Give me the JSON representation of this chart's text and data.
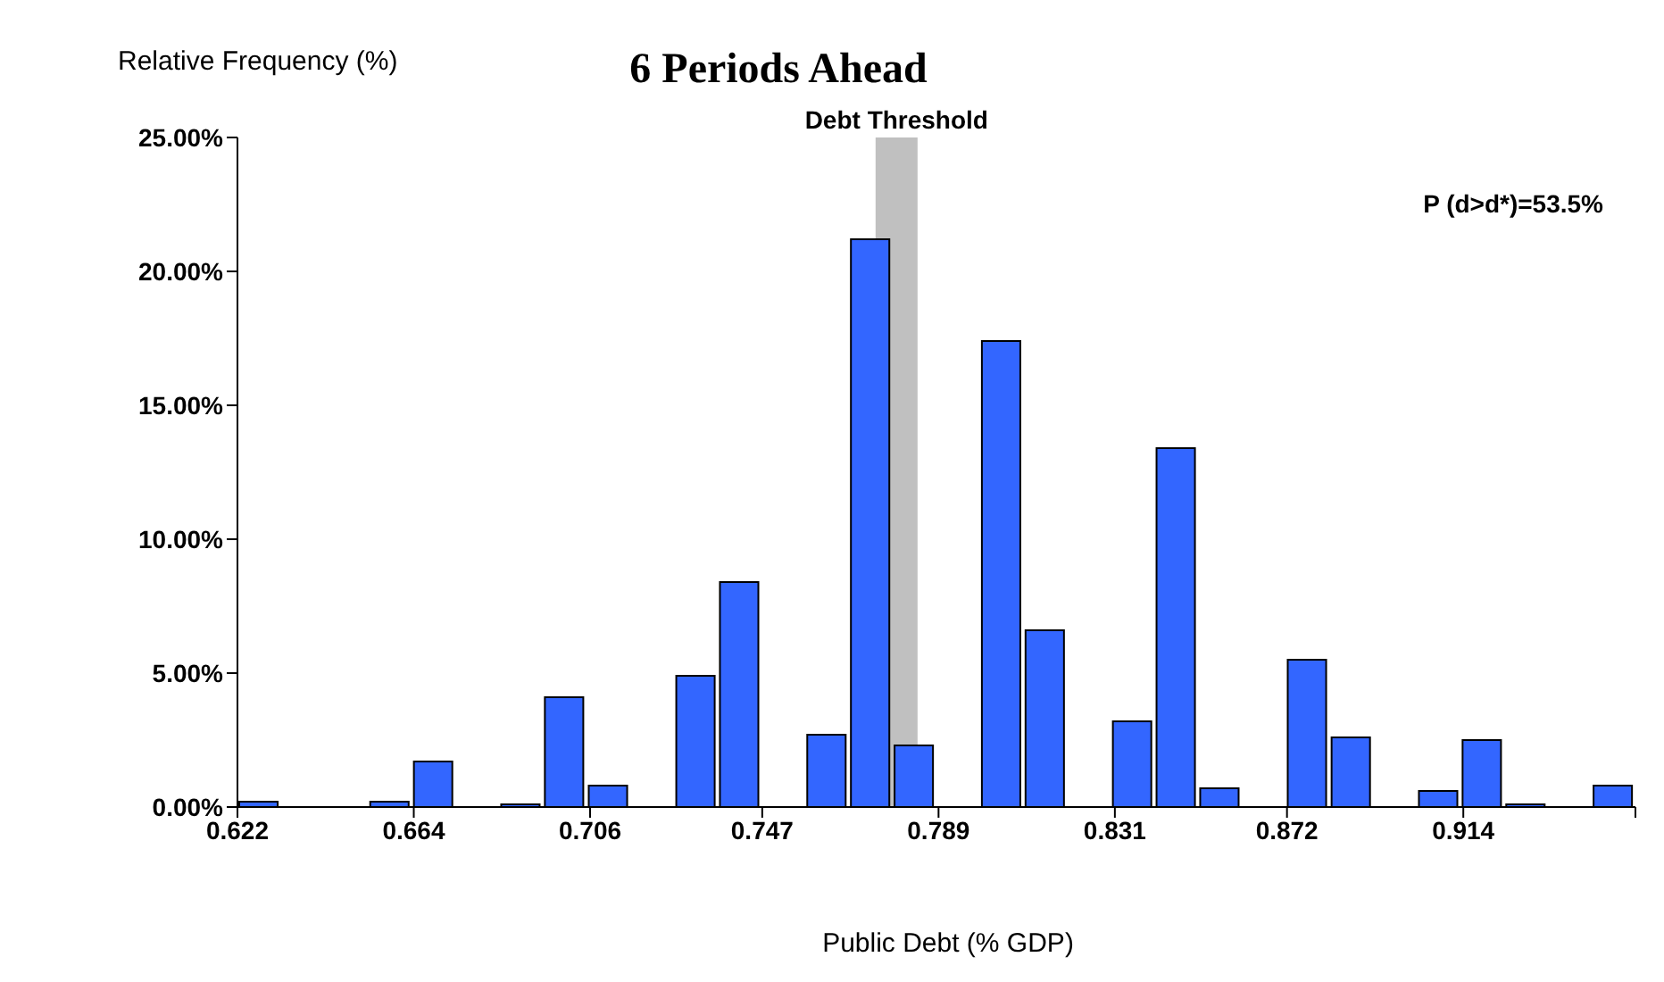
{
  "chart_data": {
    "type": "histogram",
    "title": "6 Periods Ahead",
    "xlabel": "Public Debt (% GDP)",
    "ylabel": "Relative Frequency (%)",
    "bins": [
      0.622,
      0.6324,
      0.6428,
      0.6532,
      0.6636,
      0.674,
      0.6844,
      0.6948,
      0.7052,
      0.7157,
      0.7261,
      0.7365,
      0.7469,
      0.7573,
      0.7677,
      0.7781,
      0.7885,
      0.7989,
      0.8093,
      0.8197,
      0.8301,
      0.8405,
      0.8509,
      0.8613,
      0.8717,
      0.8822,
      0.8926,
      0.903,
      0.9134,
      0.9238,
      0.9342,
      0.9446,
      0.955
    ],
    "values": [
      0.2,
      0,
      0,
      0.2,
      1.7,
      0,
      0.1,
      4.1,
      0.8,
      0,
      4.9,
      8.4,
      0,
      2.7,
      21.2,
      2.3,
      0,
      17.4,
      6.6,
      0,
      3.2,
      13.4,
      0.7,
      0,
      5.5,
      2.6,
      0,
      0.6,
      2.5,
      0.1,
      0,
      0.8
    ],
    "color": "#3366ff",
    "xlim": [
      0.622,
      0.955
    ],
    "xticks": [
      0.622,
      0.664,
      0.706,
      0.747,
      0.789,
      0.831,
      0.872,
      0.914,
      {
        "value": 0.955,
        "label": null
      }
    ],
    "ylim": [
      0,
      25
    ],
    "yticks": [
      {
        "value": 0,
        "label": "0.00%"
      },
      {
        "value": 5,
        "label": "5.00%"
      },
      {
        "value": 10,
        "label": "10.00%"
      },
      {
        "value": 15,
        "label": "15.00%"
      },
      {
        "value": 20,
        "label": "20.00%"
      },
      {
        "value": 25,
        "label": "25.00%"
      }
    ],
    "bands": [
      {
        "axis": "x",
        "from": 0.774,
        "to": 0.784,
        "label": "Debt Threshold",
        "color": "#c0c0c0"
      }
    ],
    "annotations": [
      "P (d>d*)=53.5%"
    ]
  }
}
